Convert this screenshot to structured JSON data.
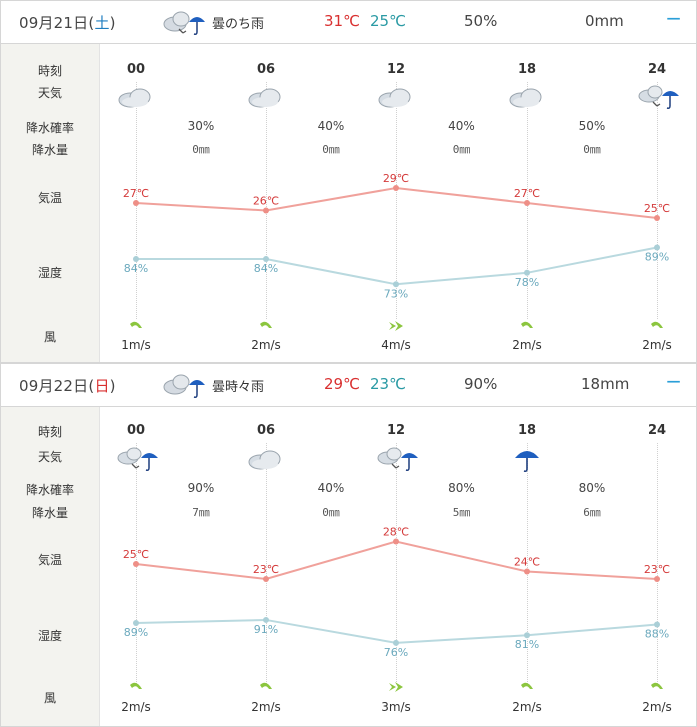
{
  "colors": {
    "temp_line": "#f0a19b",
    "temp_dot": "#ee8f87",
    "hum_line": "#b9d9df",
    "hum_dot": "#aacfd7",
    "wind": "#8cc63f"
  },
  "row_labels": {
    "time": "時刻",
    "weather": "天気",
    "pop": "降水確率",
    "rain": "降水量",
    "temp": "気温",
    "humidity": "湿度",
    "wind": "風"
  },
  "toggle_glyph": "−",
  "days": [
    {
      "date_prefix": "09月21日(",
      "weekday": "土",
      "date_suffix": ")",
      "weekday_type": "sat",
      "header_icon": "cloud-then-rain-icon",
      "weather": "曇のち雨",
      "high": "31℃",
      "low": "25℃",
      "pop": "50%",
      "rain": "0mm",
      "times": [
        "00",
        "06",
        "12",
        "18",
        "24"
      ],
      "icons": [
        "cloud-icon",
        "cloud-icon",
        "cloud-icon",
        "cloud-icon",
        "cloud-then-rain-icon"
      ],
      "pops": [
        "30%",
        "40%",
        "40%",
        "50%"
      ],
      "rains": [
        "0㎜",
        "0㎜",
        "0㎜",
        "0㎜"
      ],
      "temps": [
        27,
        26,
        29,
        27,
        25
      ],
      "temp_labels": [
        "27℃",
        "26℃",
        "29℃",
        "27℃",
        "25℃"
      ],
      "humidity": [
        84,
        84,
        73,
        78,
        89
      ],
      "humidity_labels": [
        "84%",
        "84%",
        "73%",
        "78%",
        "89%"
      ],
      "winds": [
        "1m/s",
        "2m/s",
        "4m/s",
        "2m/s",
        "2m/s"
      ],
      "wind_icons": [
        "wind-arrow-icon",
        "wind-arrow-icon",
        "wind-arrow-strong-icon",
        "wind-arrow-icon",
        "wind-arrow-icon"
      ]
    },
    {
      "date_prefix": "09月22日(",
      "weekday": "日",
      "date_suffix": ")",
      "weekday_type": "sun",
      "header_icon": "cloud-sometimes-rain-icon",
      "weather": "曇時々雨",
      "high": "29℃",
      "low": "23℃",
      "pop": "90%",
      "rain": "18mm",
      "times": [
        "00",
        "06",
        "12",
        "18",
        "24"
      ],
      "icons": [
        "cloud-then-rain-icon",
        "cloud-icon",
        "cloud-then-rain-icon",
        "umbrella-icon",
        "none"
      ],
      "pops": [
        "90%",
        "40%",
        "80%",
        "80%"
      ],
      "rains": [
        "7㎜",
        "0㎜",
        "5㎜",
        "6㎜"
      ],
      "temps": [
        25,
        23,
        28,
        24,
        23
      ],
      "temp_labels": [
        "25℃",
        "23℃",
        "28℃",
        "24℃",
        "23℃"
      ],
      "humidity": [
        89,
        91,
        76,
        81,
        88
      ],
      "humidity_labels": [
        "89%",
        "91%",
        "76%",
        "81%",
        "88%"
      ],
      "winds": [
        "2m/s",
        "2m/s",
        "3m/s",
        "2m/s",
        "2m/s"
      ],
      "wind_icons": [
        "wind-arrow-icon",
        "wind-arrow-icon",
        "wind-arrow-strong-icon",
        "wind-arrow-icon",
        "wind-arrow-icon"
      ]
    }
  ]
}
